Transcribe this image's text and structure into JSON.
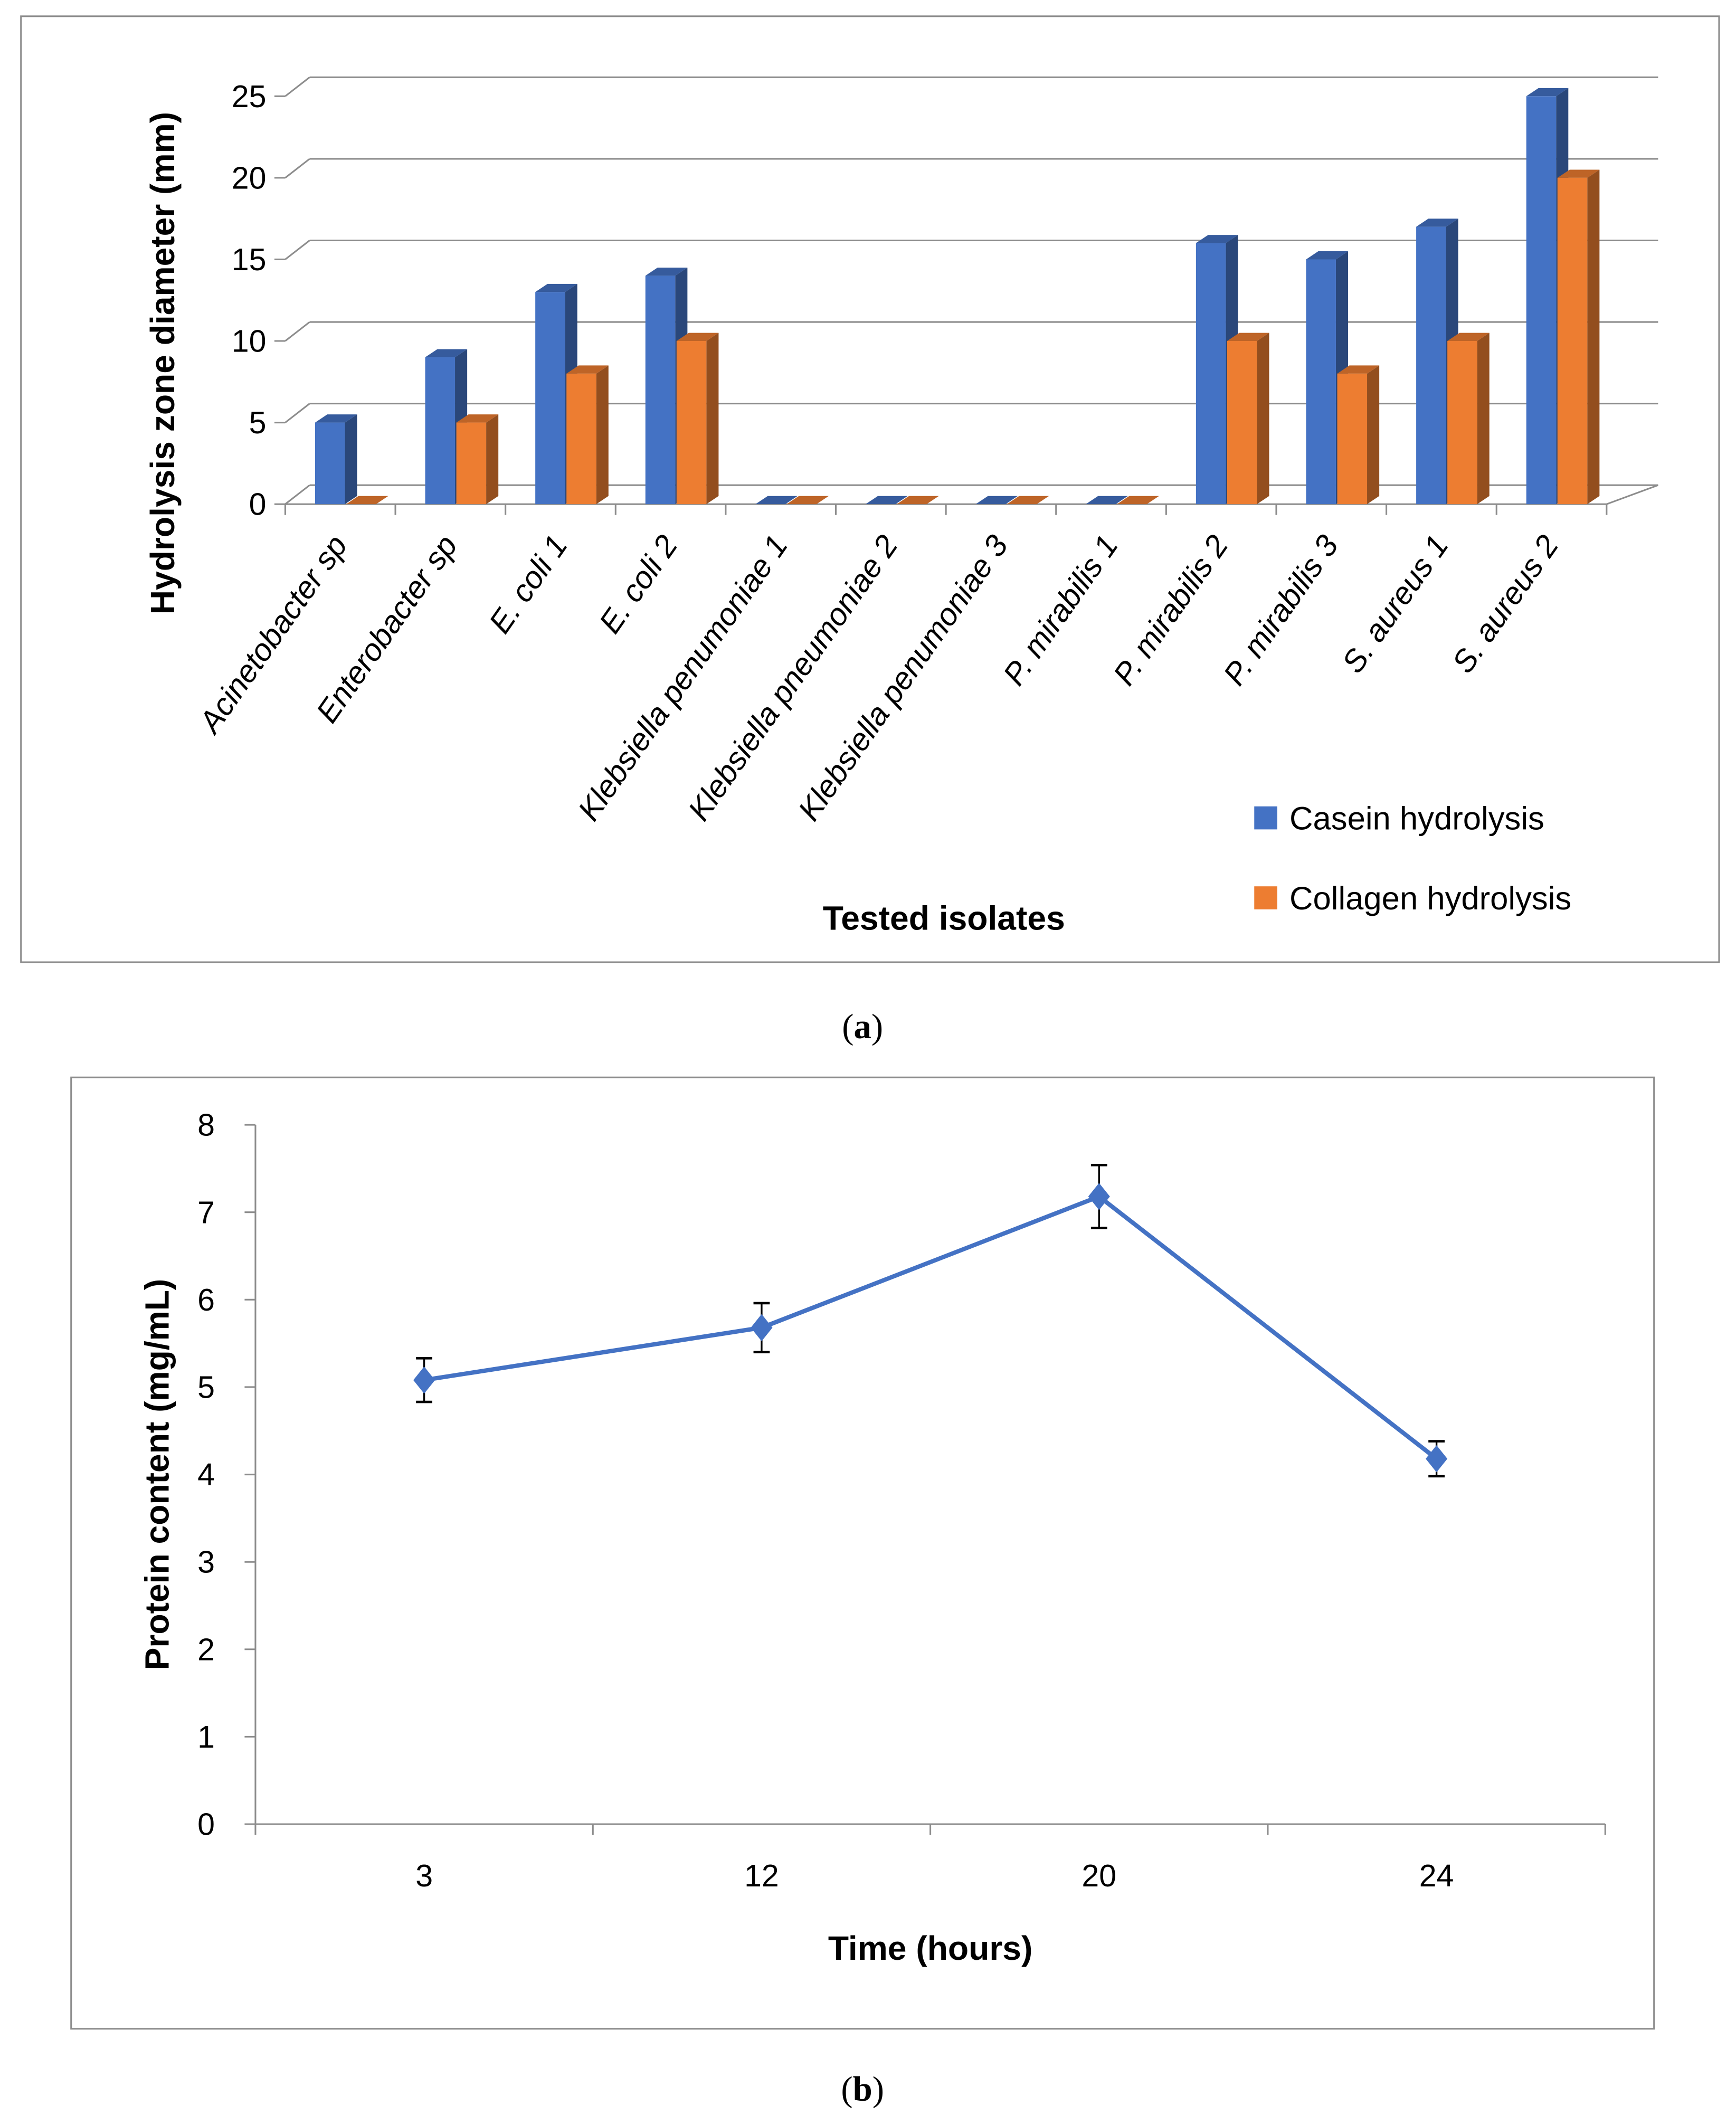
{
  "chart_data": [
    {
      "type": "bar",
      "panel_label": "(a)",
      "panel_letter": "a",
      "style": "3d-clustered-column",
      "categories": [
        "Acinetobacter sp",
        "Enterobacter sp",
        "E. coli 1",
        "E. coli 2",
        "Klebsiella penumoniae 1",
        "Klebsiella pneumoniae 2",
        "Klebsiella penumoniae 3",
        "P. mirabilis 1",
        "P. mirabilis 2",
        "P. mirabilis 3",
        "S. aureus 1",
        "S. aureus 2"
      ],
      "series": [
        {
          "name": "Casein hydrolysis",
          "color": "#4472C4",
          "values": [
            5,
            9,
            13,
            14,
            0,
            0,
            0,
            0,
            16,
            15,
            17,
            25
          ]
        },
        {
          "name": "Collagen hydrolysis",
          "color": "#ED7D31",
          "values": [
            0,
            5,
            8,
            10,
            0,
            0,
            0,
            0,
            10,
            8,
            10,
            20
          ]
        }
      ],
      "xlabel": "Tested isolates",
      "ylabel": "Hydrolysis zone diameter (mm)",
      "ylim": [
        0,
        25
      ],
      "yticks": [
        "0",
        "5",
        "10",
        "15",
        "20",
        "25"
      ],
      "grid": true,
      "legend": "bottom-right"
    },
    {
      "type": "line",
      "panel_label": "(b)",
      "panel_letter": "b",
      "categories": [
        "3",
        "12",
        "20",
        "24"
      ],
      "series": [
        {
          "name": "Protein content",
          "color": "#4472C4",
          "values": [
            5.08,
            5.68,
            7.18,
            4.18
          ],
          "error": [
            0.25,
            0.28,
            0.36,
            0.2
          ]
        }
      ],
      "xlabel": "Time (hours)",
      "ylabel": "Protein content (mg/mL)",
      "ylim": [
        0,
        8
      ],
      "yticks": [
        "0",
        "1",
        "2",
        "3",
        "4",
        "5",
        "6",
        "7",
        "8"
      ],
      "grid": false,
      "legend": "none"
    }
  ]
}
